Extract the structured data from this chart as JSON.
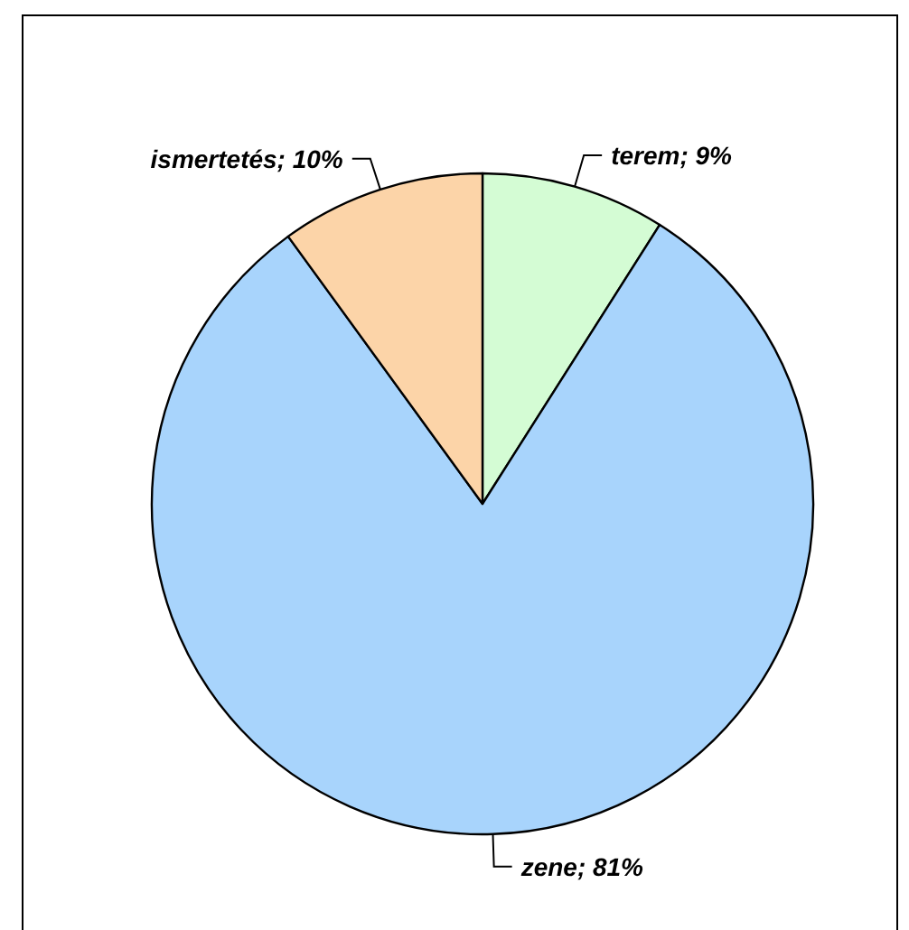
{
  "chart_data": {
    "type": "pie",
    "categories": [
      "terem",
      "zene",
      "ismertetés"
    ],
    "values": [
      9,
      81,
      10
    ],
    "value_labels": [
      "9%",
      "81%",
      "10%"
    ],
    "colors": [
      "#d4fcd4",
      "#a8d4fc",
      "#fcd4a8"
    ],
    "legend": false
  }
}
